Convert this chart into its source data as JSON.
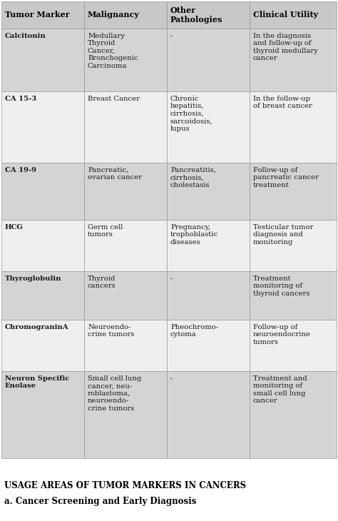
{
  "title1": "USAGE AREAS OF TUMOR MARKERS IN CANCERS",
  "title2": "a. Cancer Screening and Early Diagnosis",
  "headers": [
    "Tumor Marker",
    "Malignancy",
    "Other\nPathologies",
    "Clinical Utility"
  ],
  "rows": [
    {
      "marker": "Calcitonin",
      "malignancy": "Medullary\nThyroid\nCancer,\nBronchogenic\nCarcinoma",
      "other": "-",
      "utility": "In the diagnosis\nand follow-up of\nthyroid medullary\ncancer",
      "shade": true
    },
    {
      "marker": "CA 15-3",
      "malignancy": "Breast Cancer",
      "other": "Chronic\nhepatitis,\ncirrhosis,\nsarcoidosis,\nlupus",
      "utility": "In the follow-up\nof breast cancer",
      "shade": false
    },
    {
      "marker": "CA 19-9",
      "malignancy": "Pancreatic,\novarian cancer",
      "other": "Pancreatitis,\ncirrhosis,\ncholestasis",
      "utility": "Follow-up of\npancreatic cancer\ntreatment",
      "shade": true
    },
    {
      "marker": "HCG",
      "malignancy": "Germ cell\ntumors",
      "other": "Pregnancy,\ntrophoblastic\ndiseases",
      "utility": "Testicular tumor\ndiagnosis and\nmonitoring",
      "shade": false
    },
    {
      "marker": "Thyroglobulin",
      "malignancy": "Thyroid\ncancers",
      "other": "-",
      "utility": "Treatment\nmonitoring of\nthyroid cancers",
      "shade": true
    },
    {
      "marker": "ChromograninA",
      "malignancy": "Neuroendo-\ncrine tumors",
      "other": "Pheochromo-\ncytoma",
      "utility": "Follow-up of\nneuroendocrine\ntumors",
      "shade": false
    },
    {
      "marker": "Neuron Specific\nEnolase",
      "malignancy": "Small cell lung\ncancer, neu-\nroblastoma,\nneuroendo-\ncrine tumors",
      "other": "-",
      "utility": "Treatment and\nmonitoring of\nsmall cell lung\ncancer",
      "shade": true
    }
  ],
  "header_bg": "#c8c8c8",
  "row_shade_bg": "#d4d4d4",
  "row_plain_bg": "#efefef",
  "border_color": "#999999",
  "text_color": "#1a1a1a",
  "header_text_color": "#000000",
  "font_size_header": 8.0,
  "font_size_body": 7.2,
  "font_size_title1": 8.5,
  "font_size_title2": 8.5,
  "figsize": [
    4.74,
    7.3
  ],
  "dpi": 100
}
